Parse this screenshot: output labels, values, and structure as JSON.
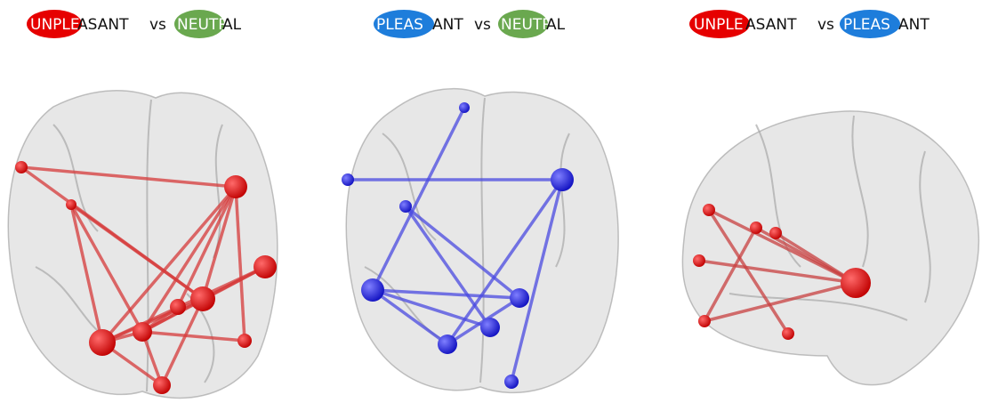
{
  "panels": [
    {
      "title": {
        "left_highlight": "UNPLE",
        "left_rest": "ASANT",
        "vs": "vs",
        "right_highlight": "NEUTR",
        "right_rest": "AL"
      }
    },
    {
      "title": {
        "left_highlight": "PLEAS",
        "left_rest": "ANT",
        "vs": "vs",
        "right_highlight": "NEUTR",
        "right_rest": "AL"
      }
    },
    {
      "title": {
        "left_highlight": "UNPLE",
        "left_rest": "ASANT",
        "vs": "vs",
        "right_highlight": "PLEAS",
        "right_rest": "ANT"
      }
    }
  ]
}
